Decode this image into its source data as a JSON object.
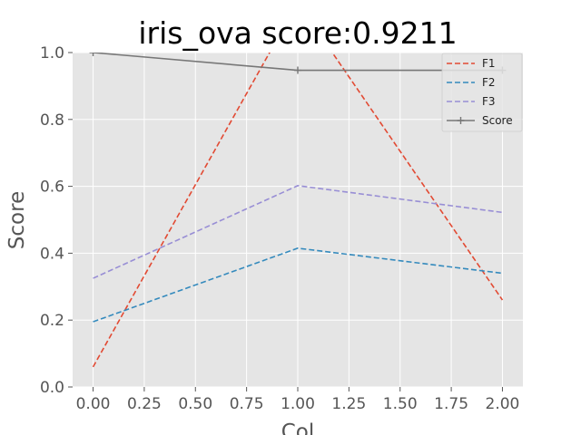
{
  "chart_data": {
    "type": "line",
    "title": "iris_ova score:0.9211",
    "xlabel": "Col",
    "ylabel": "Score",
    "x": [
      0,
      1,
      2
    ],
    "xlim": [
      -0.1,
      2.1
    ],
    "ylim": [
      0,
      1.0
    ],
    "xticks": [
      "0.00",
      "0.25",
      "0.50",
      "0.75",
      "1.00",
      "1.25",
      "1.50",
      "1.75",
      "2.00"
    ],
    "yticks": [
      "0.0",
      "0.2",
      "0.4",
      "0.6",
      "0.8",
      "1.0"
    ],
    "grid": true,
    "legend_position": "top-right",
    "series": [
      {
        "name": "F1",
        "values": [
          0.06,
          1.15,
          0.26
        ],
        "color": "#E24A33",
        "style": "dashed"
      },
      {
        "name": "F2",
        "values": [
          0.195,
          0.415,
          0.34
        ],
        "color": "#348ABD",
        "style": "dashed"
      },
      {
        "name": "F3",
        "values": [
          0.325,
          0.602,
          0.522
        ],
        "color": "#988ED5",
        "style": "dashed"
      },
      {
        "name": "Score",
        "values": [
          1.0,
          0.947,
          0.947
        ],
        "color": "#777777",
        "style": "solid",
        "marker": "plus"
      }
    ]
  }
}
